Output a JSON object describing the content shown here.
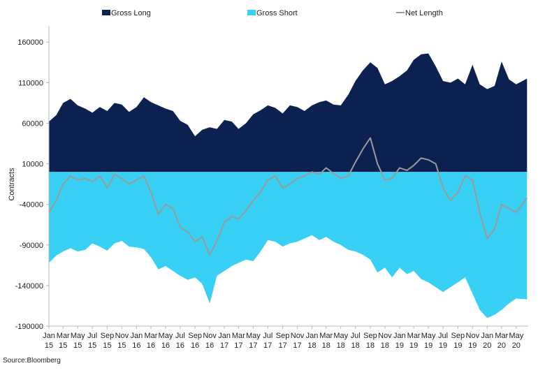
{
  "chart_data": {
    "type": "area",
    "title": "",
    "xlabel": "",
    "ylabel": "Contracts",
    "ylim": [
      -190000,
      180000
    ],
    "yticks": [
      160000,
      110000,
      60000,
      10000,
      -40000,
      -90000,
      -140000,
      -190000
    ],
    "ytick_labels": [
      "160000",
      "110000",
      "60000",
      "10000",
      "-40000",
      "-90000",
      "-140000",
      "-190000"
    ],
    "xlim": [
      "2015-01-01",
      "2020-06-20"
    ],
    "xticks": [
      {
        "date": "2015-01-01",
        "month": "Jan",
        "year": "15"
      },
      {
        "date": "2015-03-01",
        "month": "Mar",
        "year": "15"
      },
      {
        "date": "2015-05-01",
        "month": "May",
        "year": "15"
      },
      {
        "date": "2015-07-01",
        "month": "Jul",
        "year": "15"
      },
      {
        "date": "2015-09-01",
        "month": "Sep",
        "year": "15"
      },
      {
        "date": "2015-11-01",
        "month": "Nov",
        "year": "15"
      },
      {
        "date": "2016-01-01",
        "month": "Jan",
        "year": "16"
      },
      {
        "date": "2016-03-01",
        "month": "Mar",
        "year": "16"
      },
      {
        "date": "2016-05-01",
        "month": "May",
        "year": "16"
      },
      {
        "date": "2016-07-01",
        "month": "Jul",
        "year": "16"
      },
      {
        "date": "2016-09-01",
        "month": "Sep",
        "year": "16"
      },
      {
        "date": "2016-11-01",
        "month": "Nov",
        "year": "16"
      },
      {
        "date": "2017-01-01",
        "month": "Jan",
        "year": "17"
      },
      {
        "date": "2017-03-01",
        "month": "Mar",
        "year": "17"
      },
      {
        "date": "2017-05-01",
        "month": "May",
        "year": "17"
      },
      {
        "date": "2017-07-01",
        "month": "Jul",
        "year": "17"
      },
      {
        "date": "2017-09-01",
        "month": "Sep",
        "year": "17"
      },
      {
        "date": "2017-11-01",
        "month": "Nov",
        "year": "17"
      },
      {
        "date": "2018-01-01",
        "month": "Jan",
        "year": "18"
      },
      {
        "date": "2018-03-01",
        "month": "Mar",
        "year": "18"
      },
      {
        "date": "2018-05-01",
        "month": "May",
        "year": "18"
      },
      {
        "date": "2018-07-01",
        "month": "Jul",
        "year": "18"
      },
      {
        "date": "2018-09-01",
        "month": "Sep",
        "year": "18"
      },
      {
        "date": "2018-11-01",
        "month": "Nov",
        "year": "18"
      },
      {
        "date": "2019-01-01",
        "month": "Jan",
        "year": "19"
      },
      {
        "date": "2019-03-01",
        "month": "Mar",
        "year": "19"
      },
      {
        "date": "2019-05-01",
        "month": "May",
        "year": "19"
      },
      {
        "date": "2019-07-01",
        "month": "Jul",
        "year": "19"
      },
      {
        "date": "2019-09-01",
        "month": "Sep",
        "year": "19"
      },
      {
        "date": "2019-11-01",
        "month": "Nov",
        "year": "19"
      },
      {
        "date": "2020-01-01",
        "month": "Jan",
        "year": "20"
      },
      {
        "date": "2020-03-01",
        "month": "Mar",
        "year": "20"
      },
      {
        "date": "2020-05-01",
        "month": "May",
        "year": "20"
      }
    ],
    "legend": {
      "placement": "top"
    },
    "grid": false,
    "series": [
      {
        "name": "Gross Long",
        "style": "area",
        "color": "#0d2150",
        "points": [
          [
            "2015-01-01",
            62000
          ],
          [
            "2015-02-01",
            70000
          ],
          [
            "2015-03-01",
            85000
          ],
          [
            "2015-04-01",
            90000
          ],
          [
            "2015-05-01",
            82000
          ],
          [
            "2015-06-01",
            78000
          ],
          [
            "2015-07-01",
            73000
          ],
          [
            "2015-08-01",
            80000
          ],
          [
            "2015-09-01",
            75000
          ],
          [
            "2015-10-01",
            85000
          ],
          [
            "2015-11-01",
            83000
          ],
          [
            "2015-12-01",
            74000
          ],
          [
            "2016-01-01",
            80000
          ],
          [
            "2016-02-01",
            92000
          ],
          [
            "2016-03-01",
            86000
          ],
          [
            "2016-04-01",
            82000
          ],
          [
            "2016-05-01",
            78000
          ],
          [
            "2016-06-01",
            75000
          ],
          [
            "2016-07-01",
            63000
          ],
          [
            "2016-08-01",
            58000
          ],
          [
            "2016-09-01",
            44000
          ],
          [
            "2016-10-01",
            52000
          ],
          [
            "2016-11-01",
            55000
          ],
          [
            "2016-12-01",
            53000
          ],
          [
            "2017-01-01",
            64000
          ],
          [
            "2017-02-01",
            62000
          ],
          [
            "2017-03-01",
            53000
          ],
          [
            "2017-04-01",
            60000
          ],
          [
            "2017-05-01",
            71000
          ],
          [
            "2017-06-01",
            76000
          ],
          [
            "2017-07-01",
            82000
          ],
          [
            "2017-08-01",
            79000
          ],
          [
            "2017-09-01",
            72000
          ],
          [
            "2017-10-01",
            82000
          ],
          [
            "2017-11-01",
            80000
          ],
          [
            "2017-12-01",
            75000
          ],
          [
            "2018-01-01",
            82000
          ],
          [
            "2018-02-01",
            86000
          ],
          [
            "2018-03-01",
            88000
          ],
          [
            "2018-04-01",
            83000
          ],
          [
            "2018-05-01",
            82000
          ],
          [
            "2018-06-01",
            95000
          ],
          [
            "2018-07-01",
            112000
          ],
          [
            "2018-08-01",
            125000
          ],
          [
            "2018-09-01",
            135000
          ],
          [
            "2018-10-01",
            128000
          ],
          [
            "2018-11-01",
            108000
          ],
          [
            "2018-12-01",
            112000
          ],
          [
            "2019-01-01",
            118000
          ],
          [
            "2019-02-01",
            125000
          ],
          [
            "2019-03-01",
            138000
          ],
          [
            "2019-04-01",
            145000
          ],
          [
            "2019-05-01",
            146000
          ],
          [
            "2019-06-01",
            130000
          ],
          [
            "2019-07-01",
            112000
          ],
          [
            "2019-08-01",
            110000
          ],
          [
            "2019-09-01",
            115000
          ],
          [
            "2019-10-01",
            108000
          ],
          [
            "2019-11-01",
            132000
          ],
          [
            "2019-12-01",
            108000
          ],
          [
            "2020-01-01",
            102000
          ],
          [
            "2020-02-01",
            106000
          ],
          [
            "2020-03-01",
            136000
          ],
          [
            "2020-04-01",
            114000
          ],
          [
            "2020-05-01",
            108000
          ],
          [
            "2020-06-15",
            115000
          ]
        ]
      },
      {
        "name": "Gross Short",
        "style": "area",
        "color": "#39d0f6",
        "points": [
          [
            "2015-01-01",
            -112000
          ],
          [
            "2015-02-01",
            -103000
          ],
          [
            "2015-03-01",
            -98000
          ],
          [
            "2015-04-01",
            -94000
          ],
          [
            "2015-05-01",
            -98000
          ],
          [
            "2015-06-01",
            -96000
          ],
          [
            "2015-07-01",
            -88000
          ],
          [
            "2015-08-01",
            -92000
          ],
          [
            "2015-09-01",
            -97000
          ],
          [
            "2015-10-01",
            -88000
          ],
          [
            "2015-11-01",
            -85000
          ],
          [
            "2015-12-01",
            -92000
          ],
          [
            "2016-01-01",
            -93000
          ],
          [
            "2016-02-01",
            -95000
          ],
          [
            "2016-03-01",
            -105000
          ],
          [
            "2016-04-01",
            -120000
          ],
          [
            "2016-05-01",
            -116000
          ],
          [
            "2016-06-01",
            -122000
          ],
          [
            "2016-07-01",
            -128000
          ],
          [
            "2016-08-01",
            -133000
          ],
          [
            "2016-09-01",
            -130000
          ],
          [
            "2016-10-01",
            -138000
          ],
          [
            "2016-11-01",
            -162000
          ],
          [
            "2016-12-01",
            -128000
          ],
          [
            "2017-01-01",
            -122000
          ],
          [
            "2017-02-01",
            -116000
          ],
          [
            "2017-03-01",
            -112000
          ],
          [
            "2017-04-01",
            -108000
          ],
          [
            "2017-05-01",
            -110000
          ],
          [
            "2017-06-01",
            -98000
          ],
          [
            "2017-07-01",
            -84000
          ],
          [
            "2017-08-01",
            -86000
          ],
          [
            "2017-09-01",
            -92000
          ],
          [
            "2017-10-01",
            -88000
          ],
          [
            "2017-11-01",
            -86000
          ],
          [
            "2017-12-01",
            -82000
          ],
          [
            "2018-01-01",
            -78000
          ],
          [
            "2018-02-01",
            -84000
          ],
          [
            "2018-03-01",
            -80000
          ],
          [
            "2018-04-01",
            -86000
          ],
          [
            "2018-05-01",
            -90000
          ],
          [
            "2018-06-01",
            -96000
          ],
          [
            "2018-07-01",
            -98000
          ],
          [
            "2018-08-01",
            -102000
          ],
          [
            "2018-09-01",
            -108000
          ],
          [
            "2018-10-01",
            -124000
          ],
          [
            "2018-11-01",
            -118000
          ],
          [
            "2018-12-01",
            -130000
          ],
          [
            "2019-01-01",
            -118000
          ],
          [
            "2019-02-01",
            -126000
          ],
          [
            "2019-03-01",
            -122000
          ],
          [
            "2019-04-01",
            -132000
          ],
          [
            "2019-05-01",
            -136000
          ],
          [
            "2019-06-01",
            -142000
          ],
          [
            "2019-07-01",
            -148000
          ],
          [
            "2019-08-01",
            -142000
          ],
          [
            "2019-09-01",
            -136000
          ],
          [
            "2019-10-01",
            -130000
          ],
          [
            "2019-11-01",
            -150000
          ],
          [
            "2019-12-01",
            -170000
          ],
          [
            "2020-01-01",
            -180000
          ],
          [
            "2020-02-01",
            -176000
          ],
          [
            "2020-03-01",
            -170000
          ],
          [
            "2020-04-01",
            -162000
          ],
          [
            "2020-05-01",
            -156000
          ],
          [
            "2020-06-15",
            -157000
          ]
        ]
      },
      {
        "name": "Net Length",
        "style": "line",
        "color": "#9a9a9a",
        "points": [
          [
            "2015-01-01",
            -50000
          ],
          [
            "2015-02-01",
            -35000
          ],
          [
            "2015-03-01",
            -15000
          ],
          [
            "2015-04-01",
            -5000
          ],
          [
            "2015-05-01",
            -10000
          ],
          [
            "2015-06-01",
            -8000
          ],
          [
            "2015-07-01",
            -12000
          ],
          [
            "2015-08-01",
            -5000
          ],
          [
            "2015-09-01",
            -20000
          ],
          [
            "2015-10-01",
            -3000
          ],
          [
            "2015-11-01",
            -8000
          ],
          [
            "2015-12-01",
            -15000
          ],
          [
            "2016-01-01",
            -10000
          ],
          [
            "2016-02-01",
            -5000
          ],
          [
            "2016-03-01",
            -25000
          ],
          [
            "2016-04-01",
            -52000
          ],
          [
            "2016-05-01",
            -40000
          ],
          [
            "2016-06-01",
            -45000
          ],
          [
            "2016-07-01",
            -68000
          ],
          [
            "2016-08-01",
            -74000
          ],
          [
            "2016-09-01",
            -86000
          ],
          [
            "2016-10-01",
            -80000
          ],
          [
            "2016-11-01",
            -102000
          ],
          [
            "2016-12-01",
            -85000
          ],
          [
            "2017-01-01",
            -62000
          ],
          [
            "2017-02-01",
            -55000
          ],
          [
            "2017-03-01",
            -58000
          ],
          [
            "2017-04-01",
            -48000
          ],
          [
            "2017-05-01",
            -35000
          ],
          [
            "2017-06-01",
            -25000
          ],
          [
            "2017-07-01",
            -10000
          ],
          [
            "2017-08-01",
            -5000
          ],
          [
            "2017-09-01",
            -20000
          ],
          [
            "2017-10-01",
            -15000
          ],
          [
            "2017-11-01",
            -8000
          ],
          [
            "2017-12-01",
            -5000
          ],
          [
            "2018-01-01",
            0
          ],
          [
            "2018-02-01",
            -3000
          ],
          [
            "2018-03-01",
            5000
          ],
          [
            "2018-04-01",
            -2000
          ],
          [
            "2018-05-01",
            -8000
          ],
          [
            "2018-06-01",
            -5000
          ],
          [
            "2018-07-01",
            12000
          ],
          [
            "2018-08-01",
            28000
          ],
          [
            "2018-09-01",
            42000
          ],
          [
            "2018-10-01",
            10000
          ],
          [
            "2018-11-01",
            -10000
          ],
          [
            "2018-12-01",
            -8000
          ],
          [
            "2019-01-01",
            5000
          ],
          [
            "2019-02-01",
            2000
          ],
          [
            "2019-03-01",
            8000
          ],
          [
            "2019-04-01",
            17000
          ],
          [
            "2019-05-01",
            15000
          ],
          [
            "2019-06-01",
            10000
          ],
          [
            "2019-07-01",
            -20000
          ],
          [
            "2019-08-01",
            -35000
          ],
          [
            "2019-09-01",
            -25000
          ],
          [
            "2019-10-01",
            -5000
          ],
          [
            "2019-11-01",
            -10000
          ],
          [
            "2019-12-01",
            -50000
          ],
          [
            "2020-01-01",
            -82000
          ],
          [
            "2020-02-01",
            -70000
          ],
          [
            "2020-03-01",
            -40000
          ],
          [
            "2020-04-01",
            -45000
          ],
          [
            "2020-05-01",
            -50000
          ],
          [
            "2020-06-15",
            -32000
          ]
        ]
      }
    ],
    "source": "Source:Bloomberg"
  }
}
